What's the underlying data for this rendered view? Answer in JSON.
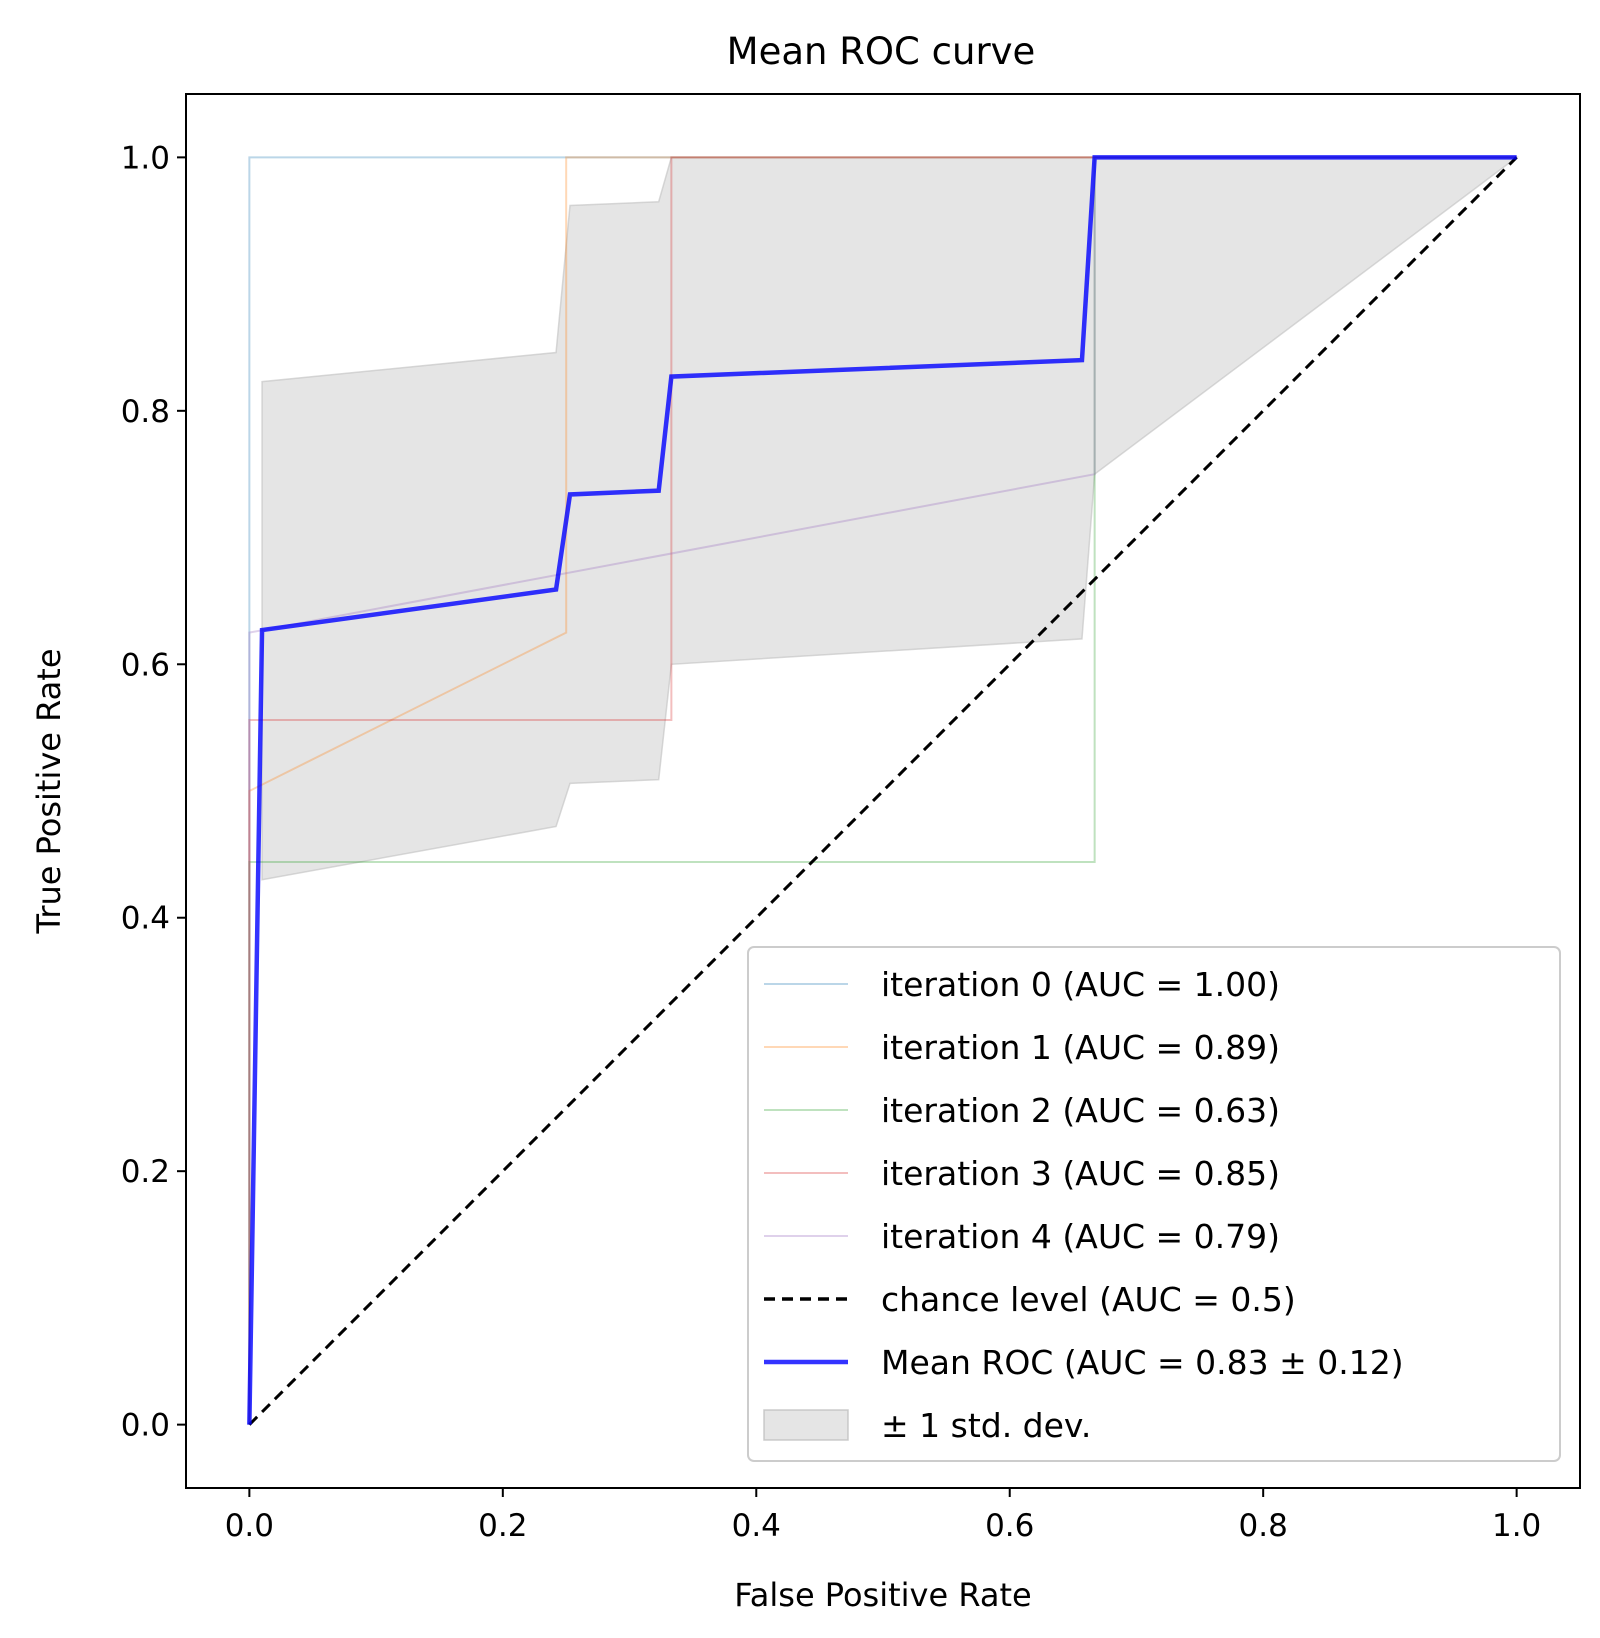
{
  "chart_data": {
    "type": "line",
    "title": "Mean ROC curve",
    "xlabel": "False Positive Rate",
    "ylabel": "True Positive Rate",
    "xlim": [
      -0.05,
      1.05
    ],
    "ylim": [
      -0.05,
      1.05
    ],
    "xticks": [
      0.0,
      0.2,
      0.4,
      0.6,
      0.8,
      1.0
    ],
    "yticks": [
      0.0,
      0.2,
      0.4,
      0.6,
      0.8,
      1.0
    ],
    "xtick_labels": [
      "0.0",
      "0.2",
      "0.4",
      "0.6",
      "0.8",
      "1.0"
    ],
    "ytick_labels": [
      "0.0",
      "0.2",
      "0.4",
      "0.6",
      "0.8",
      "1.0"
    ],
    "grid": false,
    "legend_position": "lower-right",
    "series": [
      {
        "name": "iteration 0 (AUC = 1.00)",
        "color": "#1f77b4",
        "opacity": 0.3,
        "x": [
          0,
          0,
          0,
          1
        ],
        "y": [
          0,
          0.625,
          1.0,
          1.0
        ]
      },
      {
        "name": "iteration 1 (AUC = 0.89)",
        "color": "#ff7f0e",
        "opacity": 0.3,
        "x": [
          0,
          0,
          0.25,
          0.25,
          1
        ],
        "y": [
          0,
          0.5,
          0.625,
          1.0,
          1.0
        ]
      },
      {
        "name": "iteration 2 (AUC = 0.63)",
        "color": "#2ca02c",
        "opacity": 0.3,
        "x": [
          0,
          0,
          0.667,
          0.667,
          1
        ],
        "y": [
          0,
          0.444,
          0.444,
          1.0,
          1.0
        ]
      },
      {
        "name": "iteration 3 (AUC = 0.85)",
        "color": "#d62728",
        "opacity": 0.3,
        "x": [
          0,
          0,
          0.333,
          0.333,
          1
        ],
        "y": [
          0,
          0.556,
          0.556,
          1.0,
          1.0
        ]
      },
      {
        "name": "iteration 4 (AUC = 0.79)",
        "color": "#9467bd",
        "opacity": 0.3,
        "x": [
          0,
          0,
          0.667,
          0.667,
          1
        ],
        "y": [
          0,
          0.625,
          0.75,
          1.0,
          1.0
        ]
      },
      {
        "name": "chance level (AUC = 0.5)",
        "color": "#000000",
        "opacity": 1,
        "dashed": true,
        "x": [
          0,
          1
        ],
        "y": [
          0,
          1
        ]
      },
      {
        "name": "Mean ROC (AUC = 0.83 ± 0.12)",
        "color": "#0000ff",
        "opacity": 0.8,
        "x": [
          0,
          0.01,
          0.242,
          0.253,
          0.323,
          0.333,
          0.657,
          0.667,
          1.0
        ],
        "y": [
          0,
          0.627,
          0.659,
          0.734,
          0.737,
          0.827,
          0.84,
          1.0,
          1.0
        ]
      }
    ],
    "band": {
      "name": "± 1 std. dev.",
      "color": "#bfbfbf",
      "opacity": 0.4,
      "x": [
        0.01,
        0.242,
        0.253,
        0.323,
        0.333,
        0.657,
        0.667,
        1.0
      ],
      "upper": [
        0.823,
        0.846,
        0.962,
        0.965,
        1.0,
        1.0,
        1.0,
        1.0
      ],
      "lower": [
        0.43,
        0.472,
        0.506,
        0.509,
        0.6,
        0.62,
        0.75,
        1.0
      ]
    }
  }
}
